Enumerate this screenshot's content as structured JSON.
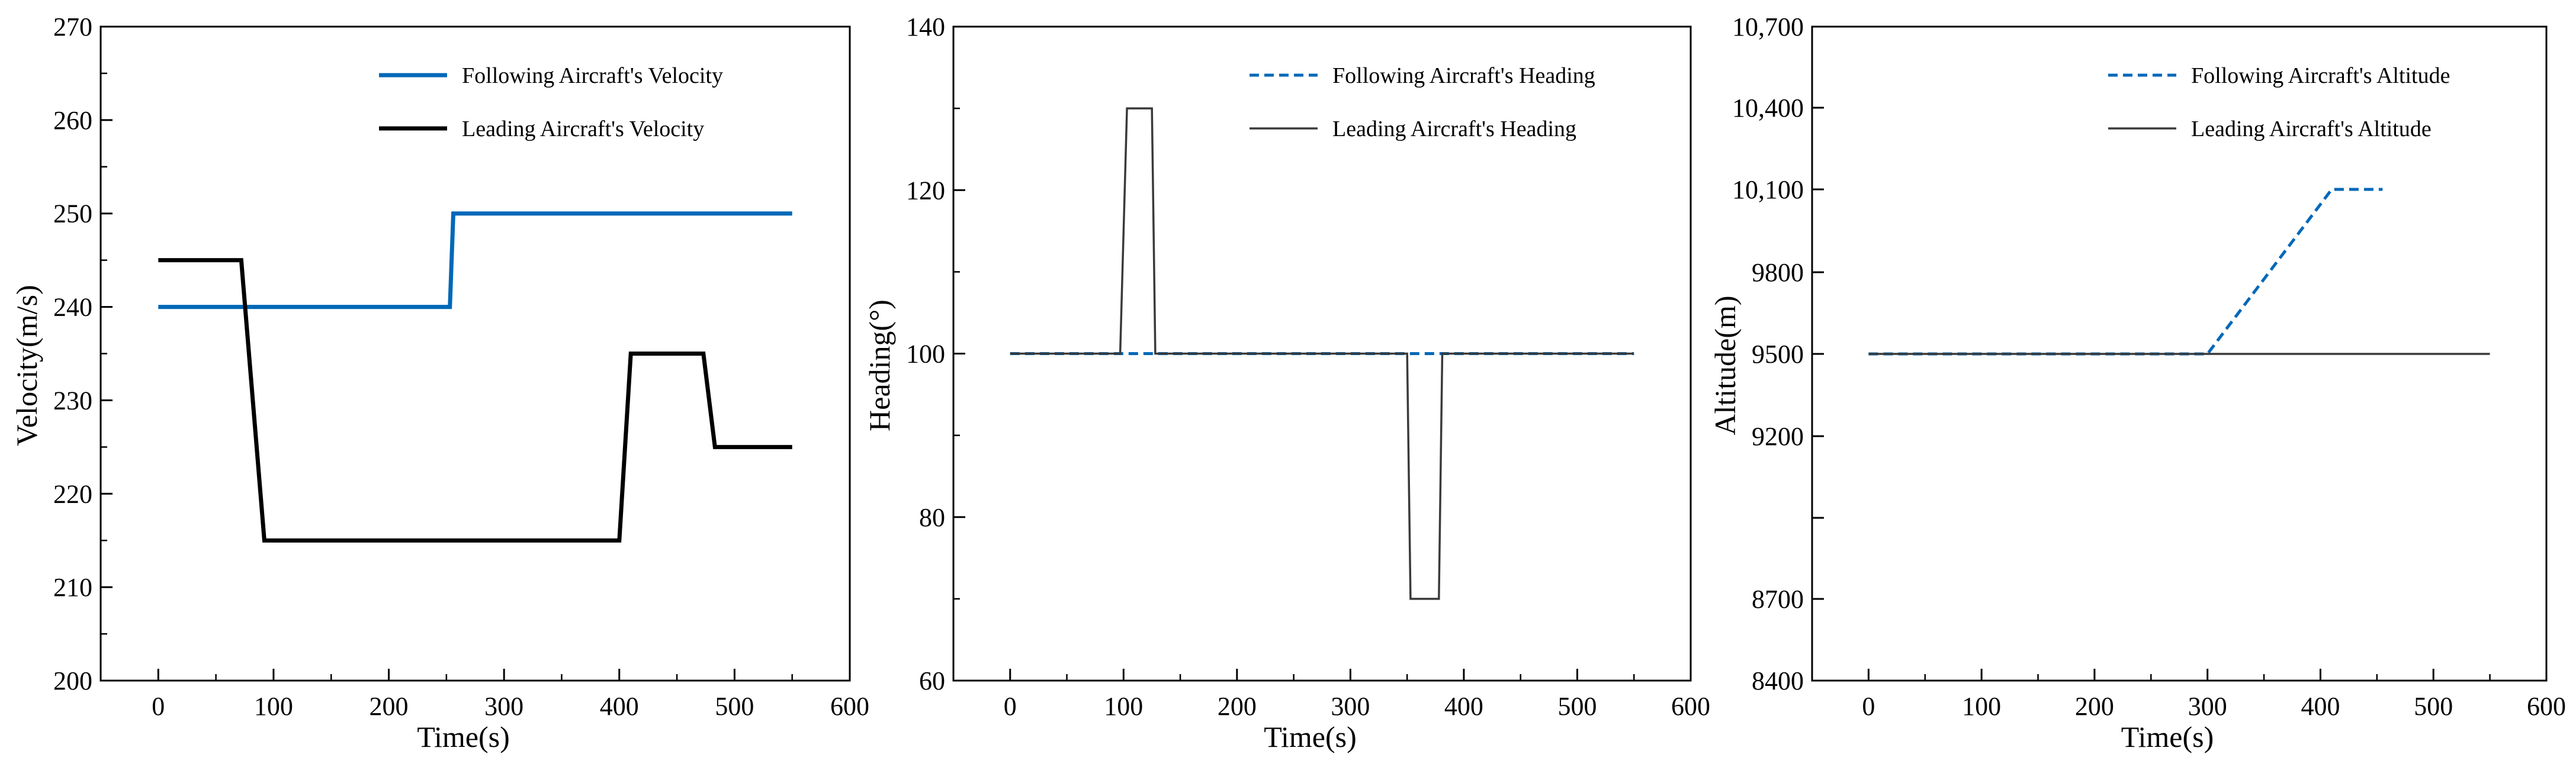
{
  "figure": {
    "colors": {
      "following": "#0068b8",
      "leading": "#000000",
      "leading_thin": "#3a3a3a"
    }
  },
  "chart_data": [
    {
      "type": "line",
      "xlabel": "Time(s)",
      "ylabel": "Velocity(m/s)",
      "xlim": [
        -50,
        600
      ],
      "ylim": [
        200,
        270
      ],
      "xticks": [
        0,
        100,
        200,
        300,
        400,
        500,
        600
      ],
      "yticks": [
        200,
        210,
        220,
        230,
        240,
        250,
        260,
        270
      ],
      "xtick_labels": [
        "0",
        "100",
        "200",
        "300",
        "400",
        "500",
        "600"
      ],
      "ytick_labels": [
        "200",
        "210",
        "220",
        "230",
        "240",
        "250",
        "260",
        "270"
      ],
      "grid": false,
      "legend_position": "top-right",
      "series": [
        {
          "name": "Following Aircraft's Velocity",
          "style": "solid-thick",
          "color": "#0068b8",
          "x": [
            0,
            253,
            256,
            550
          ],
          "y": [
            240,
            240,
            250,
            250
          ]
        },
        {
          "name": "Leading Aircraft's Velocity",
          "style": "solid-thick",
          "color": "#000000",
          "x": [
            0,
            72,
            92,
            400,
            410,
            473,
            483,
            550
          ],
          "y": [
            245,
            245,
            215,
            215,
            235,
            235,
            225,
            225
          ]
        }
      ]
    },
    {
      "type": "line",
      "xlabel": "Time(s)",
      "ylabel": "Heading(°)",
      "xlim": [
        -50,
        600
      ],
      "ylim": [
        60,
        140
      ],
      "xticks": [
        0,
        100,
        200,
        300,
        400,
        500,
        600
      ],
      "yticks": [
        60,
        80,
        100,
        120,
        140
      ],
      "xtick_labels": [
        "0",
        "100",
        "200",
        "300",
        "400",
        "500",
        "600"
      ],
      "ytick_labels": [
        "60",
        "80",
        "100",
        "120",
        "140"
      ],
      "grid": false,
      "legend_position": "top-right",
      "series": [
        {
          "name": "Following Aircraft's Heading",
          "style": "dashed",
          "color": "#0068b8",
          "x": [
            0,
            550
          ],
          "y": [
            100,
            100
          ]
        },
        {
          "name": "Leading Aircraft's Heading",
          "style": "solid-thin",
          "color": "#3a3a3a",
          "x": [
            0,
            97,
            103,
            125,
            128,
            350,
            353,
            378,
            381,
            550
          ],
          "y": [
            100,
            100,
            130,
            130,
            100,
            100,
            70,
            70,
            100,
            100
          ]
        }
      ]
    },
    {
      "type": "line",
      "xlabel": "Time(s)",
      "ylabel": "Altitude(m)",
      "xlim": [
        -50,
        600
      ],
      "ylim": [
        8400,
        10700
      ],
      "xticks": [
        0,
        100,
        200,
        300,
        400,
        500,
        600
      ],
      "yticks": [
        8400,
        8700,
        9000,
        9200,
        9500,
        9800,
        10100,
        10400,
        10700
      ],
      "xtick_labels": [
        "0",
        "100",
        "200",
        "300",
        "400",
        "500",
        "600"
      ],
      "ytick_labels": [
        "8400",
        "8700",
        "",
        "9200",
        "9500",
        "9800",
        "10,100",
        "10,400",
        "10,700"
      ],
      "grid": false,
      "legend_position": "top-right",
      "series": [
        {
          "name": "Following Aircraft's Altitude",
          "style": "dashed",
          "color": "#0068b8",
          "x": [
            0,
            300,
            410,
            455
          ],
          "y": [
            9500,
            9500,
            10100,
            10100
          ]
        },
        {
          "name": "Leading Aircraft's Altitude",
          "style": "solid-thin",
          "color": "#3a3a3a",
          "x": [
            0,
            550
          ],
          "y": [
            9500,
            9500
          ]
        }
      ]
    }
  ]
}
